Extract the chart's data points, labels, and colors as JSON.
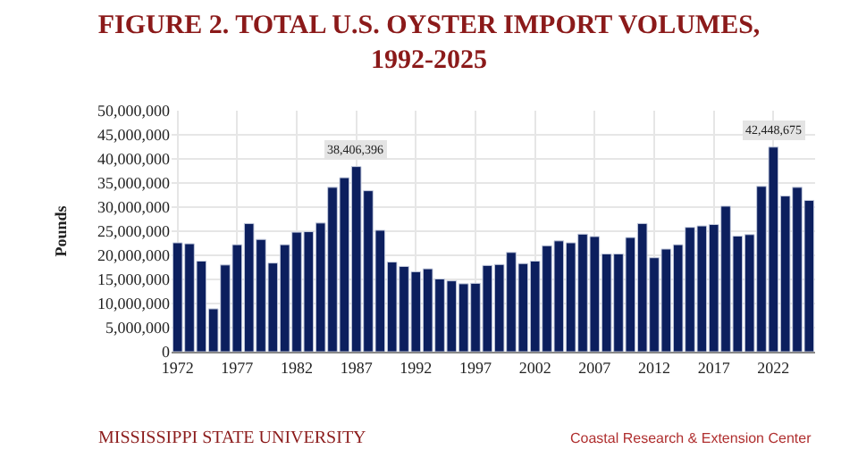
{
  "chart_data": {
    "type": "bar",
    "title": "FIGURE 2. TOTAL U.S. OYSTER IMPORT VOLUMES, 1992-2025",
    "ylabel": "Pounds",
    "x": [
      1972,
      1973,
      1974,
      1975,
      1976,
      1977,
      1978,
      1979,
      1980,
      1981,
      1982,
      1983,
      1984,
      1985,
      1986,
      1987,
      1988,
      1989,
      1990,
      1991,
      1992,
      1993,
      1994,
      1995,
      1996,
      1997,
      1998,
      1999,
      2000,
      2001,
      2002,
      2003,
      2004,
      2005,
      2006,
      2007,
      2008,
      2009,
      2010,
      2011,
      2012,
      2013,
      2014,
      2015,
      2016,
      2017,
      2018,
      2019,
      2020,
      2021,
      2022,
      2023,
      2024,
      2025
    ],
    "values": [
      22600000,
      22400000,
      18800000,
      8900000,
      18000000,
      22200000,
      26600000,
      23300000,
      18400000,
      22200000,
      24800000,
      24900000,
      26700000,
      34100000,
      36100000,
      38406396,
      33400000,
      25200000,
      18600000,
      17700000,
      16600000,
      17200000,
      15100000,
      14700000,
      14100000,
      14200000,
      17900000,
      18100000,
      20600000,
      18300000,
      18800000,
      22000000,
      23000000,
      22600000,
      24400000,
      23900000,
      20300000,
      20300000,
      23700000,
      26600000,
      19500000,
      21300000,
      22200000,
      25800000,
      26100000,
      26400000,
      30200000,
      24000000,
      24300000,
      34300000,
      42448675,
      32300000,
      34100000,
      31400000
    ],
    "value_labels": [
      null,
      null,
      null,
      null,
      null,
      null,
      null,
      null,
      null,
      null,
      null,
      null,
      null,
      null,
      null,
      "38,406,396",
      null,
      null,
      null,
      null,
      null,
      null,
      null,
      null,
      null,
      null,
      null,
      null,
      null,
      null,
      null,
      null,
      null,
      null,
      null,
      null,
      null,
      null,
      null,
      null,
      null,
      null,
      null,
      null,
      null,
      null,
      null,
      null,
      null,
      null,
      "42,448,675",
      null,
      null,
      null
    ],
    "color": "#0c1f5e",
    "xlim": [
      1971.5,
      2025.5
    ],
    "xticks": [
      1972,
      1977,
      1982,
      1987,
      1992,
      1997,
      2002,
      2007,
      2012,
      2017,
      2022
    ],
    "ylim": [
      0,
      50000000
    ],
    "yticks": [
      {
        "value": 0,
        "label": "0"
      },
      {
        "value": 5000000,
        "label": "5,000,000"
      },
      {
        "value": 10000000,
        "label": "10,000,000"
      },
      {
        "value": 15000000,
        "label": "15,000,000"
      },
      {
        "value": 20000000,
        "label": "20,000,000"
      },
      {
        "value": 25000000,
        "label": "25,000,000"
      },
      {
        "value": 30000000,
        "label": "30,000,000"
      },
      {
        "value": 35000000,
        "label": "35,000,000"
      },
      {
        "value": 40000000,
        "label": "40,000,000"
      },
      {
        "value": 45000000,
        "label": "45,000,000"
      },
      {
        "value": 50000000,
        "label": "50,000,000"
      }
    ],
    "grid": true,
    "annotations": [
      "MISSISSIPPI STATE UNIVERSITY",
      "Coastal Research & Extension Center"
    ]
  }
}
